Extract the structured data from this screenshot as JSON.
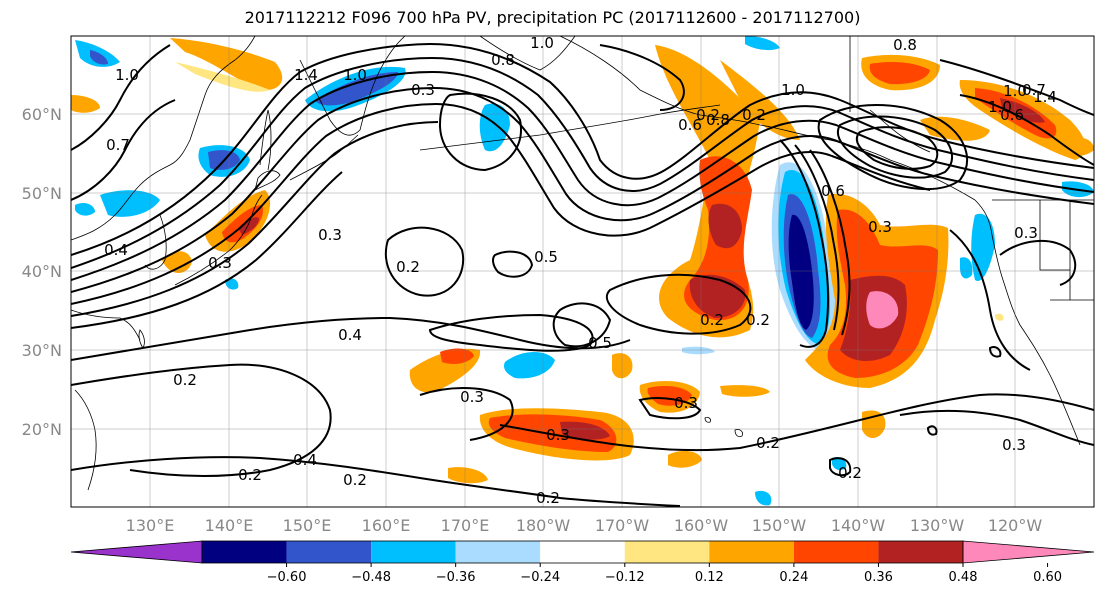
{
  "title": "2017112212 F096 700 hPa PV, precipitation PC (2017112600 - 2017112700)",
  "lat_labels": [
    "60°N",
    "50°N",
    "40°N",
    "30°N",
    "20°N"
  ],
  "lon_labels": [
    "130°E",
    "140°E",
    "150°E",
    "160°E",
    "170°E",
    "180°W",
    "170°W",
    "160°W",
    "150°W",
    "140°W",
    "130°W",
    "120°W"
  ],
  "colorbar": {
    "colors": [
      "#9933cc",
      "#000080",
      "#3355cc",
      "#00bfff",
      "#aadcff",
      "#ffffff",
      "#ffe680",
      "#ffa500",
      "#ff4500",
      "#b22222",
      "#ff88bb"
    ],
    "tick_labels": [
      "−0.60",
      "−0.48",
      "−0.36",
      "−0.24",
      "−0.12",
      "0.12",
      "0.24",
      "0.36",
      "0.48",
      "0.60"
    ]
  },
  "contour_labels": [
    "1.0",
    "1.4",
    "1.0",
    "0.3",
    "1.0",
    "0.8",
    "1.0",
    "0.8",
    "0.2",
    "0.2",
    "0.6",
    "0.8",
    "0.6",
    "1.0",
    "1.4",
    "0.7",
    "1.0",
    "0.7",
    "0.4",
    "0.3",
    "0.3",
    "0.2",
    "0.5",
    "0.3",
    "0.4",
    "0.3",
    "0.2",
    "0.5",
    "0.2",
    "0.2",
    "0.3",
    "0.3",
    "0.3",
    "0.4",
    "0.2",
    "0.2",
    "0.2",
    "0.2",
    "0.3",
    "0.2",
    "0.6"
  ]
}
